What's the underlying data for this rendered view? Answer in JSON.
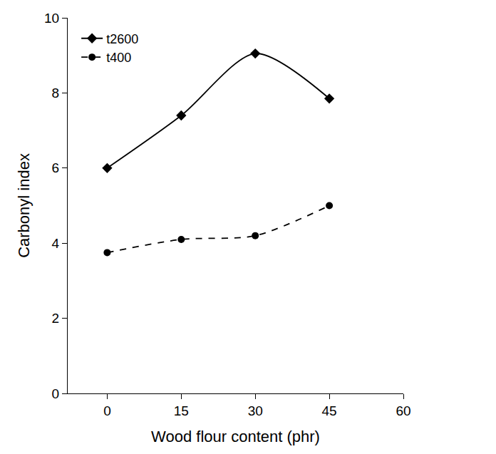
{
  "chart_data": {
    "type": "line",
    "x_label": "Wood flour content (phr)",
    "y_label": "Carbonyl index",
    "x": [
      0,
      15,
      30,
      45
    ],
    "series": [
      {
        "name": "t2600",
        "color": "#000000",
        "marker": "diamond",
        "line_style": "solid",
        "values": [
          6.0,
          7.4,
          9.05,
          7.85
        ]
      },
      {
        "name": "t400",
        "color": "#000000",
        "marker": "circle",
        "line_style": "dashed",
        "values": [
          3.75,
          4.1,
          4.2,
          5.0
        ]
      }
    ],
    "xlim": [
      -8,
      60
    ],
    "xticks": [
      0,
      15,
      30,
      45,
      60
    ],
    "ylim": [
      0,
      10
    ],
    "yticks": [
      0,
      2,
      4,
      6,
      8,
      10
    ],
    "grid": false,
    "legend": "upper left"
  }
}
